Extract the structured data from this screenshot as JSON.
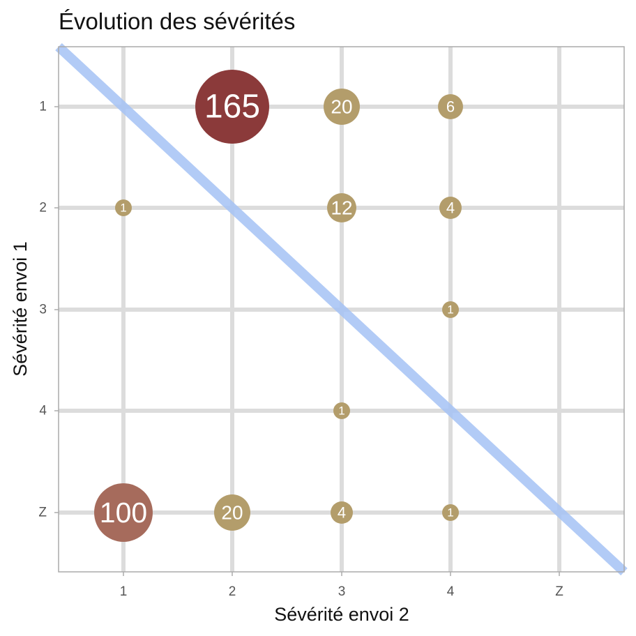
{
  "chart_data": {
    "type": "scatter",
    "title": "Évolution des sévérités",
    "xlabel": "Sévérité envoi 2",
    "ylabel": "Sévérité envoi 1",
    "x_categories": [
      "1",
      "2",
      "3",
      "4",
      "Z"
    ],
    "y_categories": [
      "1",
      "2",
      "3",
      "4",
      "Z"
    ],
    "grid": true,
    "reference_line": "diagonal",
    "points": [
      {
        "x": "2",
        "y": "1",
        "value": 165
      },
      {
        "x": "3",
        "y": "1",
        "value": 20
      },
      {
        "x": "4",
        "y": "1",
        "value": 6
      },
      {
        "x": "1",
        "y": "2",
        "value": 1
      },
      {
        "x": "3",
        "y": "2",
        "value": 12
      },
      {
        "x": "4",
        "y": "2",
        "value": 4
      },
      {
        "x": "4",
        "y": "3",
        "value": 1
      },
      {
        "x": "3",
        "y": "4",
        "value": 1
      },
      {
        "x": "1",
        "y": "Z",
        "value": 100
      },
      {
        "x": "2",
        "y": "Z",
        "value": 20
      },
      {
        "x": "3",
        "y": "Z",
        "value": 4
      },
      {
        "x": "4",
        "y": "Z",
        "value": 1
      }
    ],
    "colors": {
      "small": "#b39d6b",
      "mid": "#a66b5c",
      "large": "#8b3a3a",
      "diagonal": "#a4c2f4",
      "grid": "#dcdcdc",
      "frame": "#aaaaaa"
    }
  }
}
